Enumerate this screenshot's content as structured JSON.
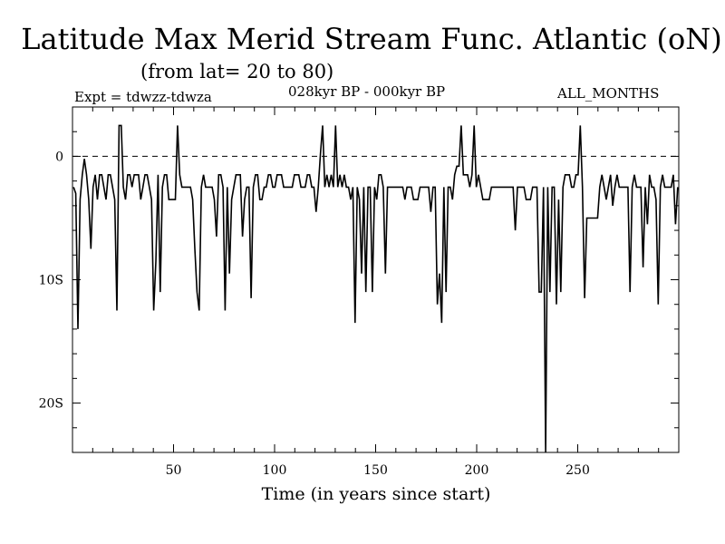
{
  "chart_data": {
    "type": "line",
    "title": "Latitude Max Merid Stream Func. Atlantic (oN)",
    "subtitle": "(from lat= 20 to 80)",
    "annotations": {
      "experiment": "Expt = tdwzz-tdwza",
      "period": "028kyr BP - 000kyr BP",
      "months": "ALL_MONTHS"
    },
    "xlabel": "Time (in years since start)",
    "ylabel": "",
    "xlim": [
      0,
      300
    ],
    "ylim": [
      -24,
      4
    ],
    "x_ticks": [
      50,
      100,
      150,
      200,
      250
    ],
    "x_tick_labels": [
      "50",
      "100",
      "150",
      "200",
      "250"
    ],
    "y_ticks": [
      0,
      -10,
      -20
    ],
    "y_tick_labels": [
      "0",
      "10S",
      "20S"
    ],
    "reference_line": {
      "y": 0,
      "style": "dashed"
    },
    "series": [
      {
        "values": [
          -2.5,
          -3,
          -14,
          -3.5,
          -1.5,
          -0.2,
          -1.5,
          -3.5,
          -7.5,
          -2.5,
          -1.5,
          -3.5,
          -1.5,
          -1.5,
          -2.5,
          -3.5,
          -1.5,
          -1.5,
          -2.5,
          -3.5,
          -12.5,
          2.5,
          2.5,
          -2.5,
          -3.5,
          -1.5,
          -1.5,
          -2.5,
          -1.5,
          -1.5,
          -1.5,
          -3.5,
          -2.5,
          -1.5,
          -1.5,
          -2.5,
          -3.5,
          -12.5,
          -8.5,
          -1.5,
          -11,
          -2.5,
          -1.5,
          -1.5,
          -3.5,
          -3.5,
          -3.5,
          -3.5,
          2.5,
          -1.5,
          -2.5,
          -2.5,
          -2.5,
          -2.5,
          -2.5,
          -3.5,
          -7.5,
          -11,
          -12.5,
          -2.5,
          -1.5,
          -2.5,
          -2.5,
          -2.5,
          -2.5,
          -3.5,
          -6.5,
          -1.5,
          -1.5,
          -2.5,
          -12.5,
          -2.5,
          -9.5,
          -3.5,
          -2.5,
          -1.5,
          -1.5,
          -1.5,
          -6.5,
          -3.5,
          -2.5,
          -2.5,
          -11.5,
          -2.5,
          -1.5,
          -1.5,
          -3.5,
          -3.5,
          -2.5,
          -2.5,
          -1.5,
          -1.5,
          -2.5,
          -2.5,
          -1.5,
          -1.5,
          -1.5,
          -2.5,
          -2.5,
          -2.5,
          -2.5,
          -2.5,
          -1.5,
          -1.5,
          -1.5,
          -2.5,
          -2.5,
          -2.5,
          -1.5,
          -1.5,
          -2.5,
          -2.5,
          -4.5,
          -2.5,
          0.2,
          2.5,
          -2.5,
          -1.5,
          -2.5,
          -1.5,
          -2.5,
          2.5,
          -2.5,
          -1.5,
          -2.5,
          -1.5,
          -2.5,
          -2.5,
          -3.5,
          -2.5,
          -13.5,
          -2.5,
          -3.5,
          -9.5,
          -2.5,
          -11,
          -2.5,
          -2.5,
          -11,
          -2.5,
          -3.5,
          -1.5,
          -1.5,
          -2.5,
          -9.5,
          -2.5,
          -2.5,
          -2.5,
          -2.5,
          -2.5,
          -2.5,
          -2.5,
          -2.5,
          -3.5,
          -2.5,
          -2.5,
          -2.5,
          -3.5,
          -3.5,
          -3.5,
          -2.5,
          -2.5,
          -2.5,
          -2.5,
          -2.5,
          -4.5,
          -2.5,
          -2.5,
          -12,
          -9.5,
          -13.5,
          -2.5,
          -11,
          -2.5,
          -2.5,
          -3.5,
          -1.5,
          -0.8,
          -0.8,
          2.5,
          -1.5,
          -1.5,
          -1.5,
          -2.5,
          -1.5,
          2.5,
          -2.5,
          -1.5,
          -2.5,
          -3.5,
          -3.5,
          -3.5,
          -3.5,
          -2.5,
          -2.5,
          -2.5,
          -2.5,
          -2.5,
          -2.5,
          -2.5,
          -2.5,
          -2.5,
          -2.5,
          -2.5,
          -6,
          -2.5,
          -2.5,
          -2.5,
          -2.5,
          -3.5,
          -3.5,
          -3.5,
          -2.5,
          -2.5,
          -2.5,
          -11,
          -11,
          -2.5,
          -24,
          -2.5,
          -11,
          -2.5,
          -2.5,
          -12,
          -3.5,
          -11,
          -2.5,
          -1.5,
          -1.5,
          -1.5,
          -2.5,
          -2.5,
          -1.5,
          -1.5,
          2.5,
          -2.5,
          -11.5,
          -5,
          -5,
          -5,
          -5,
          -5,
          -5,
          -2.5,
          -1.5,
          -2.5,
          -3.5,
          -2.5,
          -1.5,
          -4,
          -2.5,
          -1.5,
          -2.5,
          -2.5,
          -2.5,
          -2.5,
          -2.5,
          -11,
          -2.5,
          -1.5,
          -2.5,
          -2.5,
          -2.5,
          -9,
          -2.5,
          -5.5,
          -1.5,
          -2.5,
          -2.5,
          -3.5,
          -12,
          -2.5,
          -1.5,
          -2.5,
          -2.5,
          -2.5,
          -2.5,
          -1.5,
          -5.5,
          -2.5
        ]
      }
    ]
  }
}
